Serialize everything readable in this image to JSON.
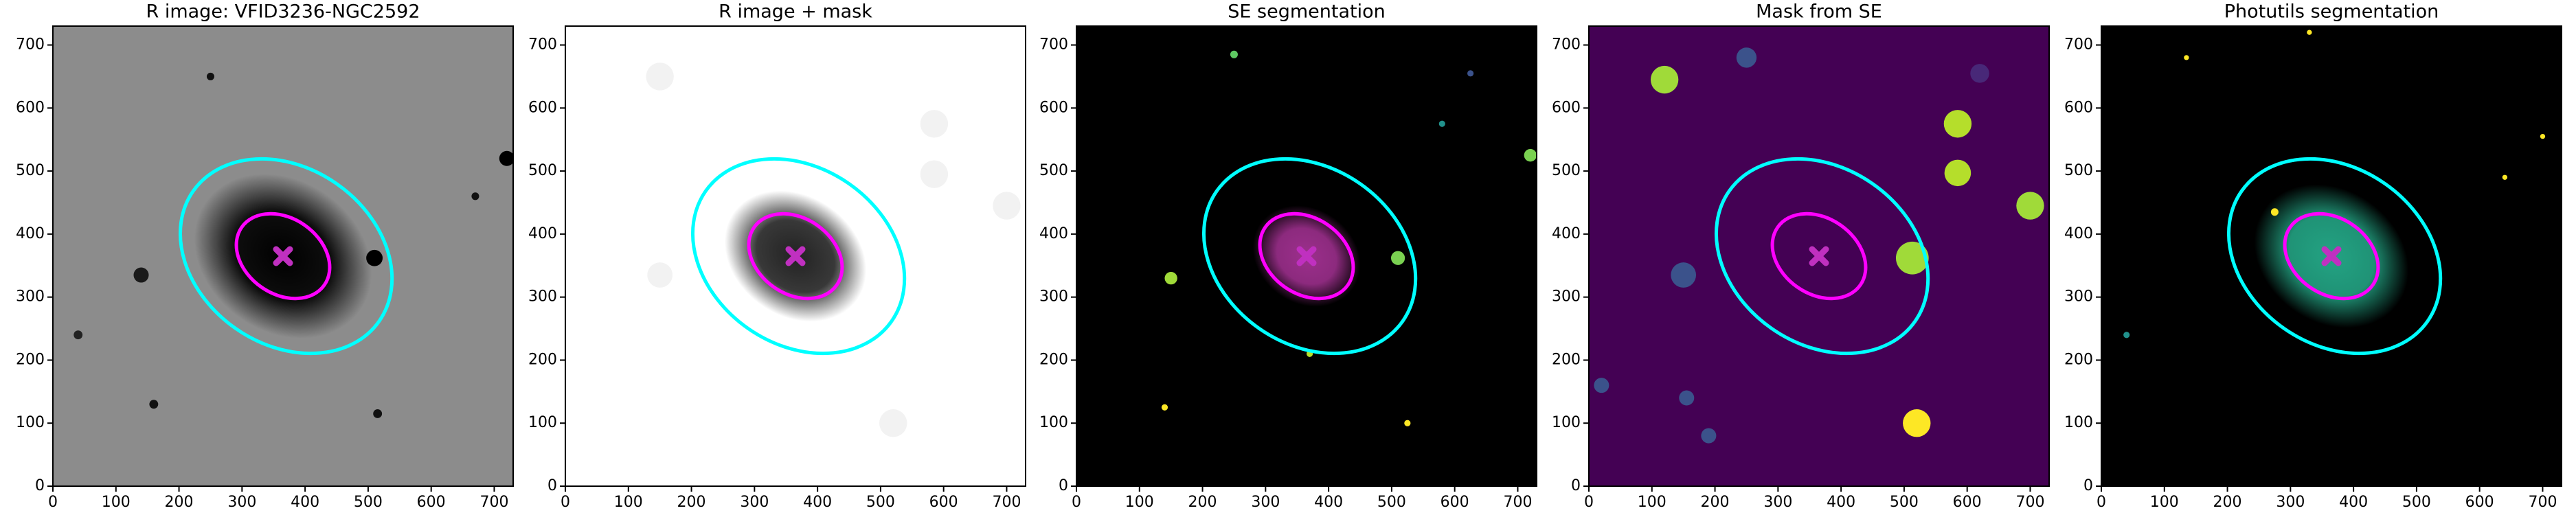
{
  "chart_data": [
    {
      "type": "image",
      "title": "R image: VFID3236-NGC2592",
      "background": "#8c8c8c",
      "xlim": [
        0,
        730
      ],
      "ylim": [
        0,
        730
      ],
      "xticks": [
        0,
        100,
        200,
        300,
        400,
        500,
        600,
        700
      ],
      "yticks": [
        0,
        100,
        200,
        300,
        400,
        500,
        600,
        700
      ],
      "galaxy": {
        "x": 365,
        "y": 365,
        "a": 150,
        "b": 120,
        "angle": -35,
        "color": "#000000"
      },
      "sources": [
        {
          "x": 720,
          "y": 520,
          "r": 12,
          "color": "#000000"
        },
        {
          "x": 510,
          "y": 362,
          "r": 13,
          "color": "#000000"
        },
        {
          "x": 140,
          "y": 335,
          "r": 12,
          "color": "#1a1a1a"
        },
        {
          "x": 250,
          "y": 650,
          "r": 6,
          "color": "#111111"
        },
        {
          "x": 160,
          "y": 130,
          "r": 7,
          "color": "#111111"
        },
        {
          "x": 515,
          "y": 115,
          "r": 7,
          "color": "#111111"
        },
        {
          "x": 40,
          "y": 240,
          "r": 7,
          "color": "#222222"
        },
        {
          "x": 670,
          "y": 460,
          "r": 6,
          "color": "#111111"
        }
      ],
      "ellipses": [
        {
          "cx": 370,
          "cy": 365,
          "a": 180,
          "b": 140,
          "angle": -35,
          "color": "#00ffff"
        },
        {
          "cx": 365,
          "cy": 365,
          "a": 80,
          "b": 60,
          "angle": -35,
          "color": "#ff00ff"
        }
      ],
      "marker": {
        "x": 365,
        "y": 365,
        "color": "#c030c0"
      }
    },
    {
      "type": "image",
      "title": "R image + mask",
      "background": "#ffffff",
      "xlim": [
        0,
        730
      ],
      "ylim": [
        0,
        730
      ],
      "xticks": [
        0,
        100,
        200,
        300,
        400,
        500,
        600,
        700
      ],
      "yticks": [
        0,
        100,
        200,
        300,
        400,
        500,
        600,
        700
      ],
      "galaxy": {
        "x": 365,
        "y": 365,
        "a": 120,
        "b": 95,
        "angle": -35,
        "color": "#222222"
      },
      "sources": [
        {
          "x": 150,
          "y": 650,
          "r": 22,
          "color": "#f2f2f2"
        },
        {
          "x": 585,
          "y": 575,
          "r": 22,
          "color": "#f2f2f2"
        },
        {
          "x": 585,
          "y": 495,
          "r": 22,
          "color": "#f2f2f2"
        },
        {
          "x": 700,
          "y": 445,
          "r": 22,
          "color": "#f2f2f2"
        },
        {
          "x": 520,
          "y": 100,
          "r": 22,
          "color": "#f2f2f2"
        },
        {
          "x": 150,
          "y": 335,
          "r": 20,
          "color": "#f2f2f2"
        }
      ],
      "ellipses": [
        {
          "cx": 370,
          "cy": 365,
          "a": 180,
          "b": 140,
          "angle": -35,
          "color": "#00ffff"
        },
        {
          "cx": 365,
          "cy": 365,
          "a": 80,
          "b": 60,
          "angle": -35,
          "color": "#ff00ff"
        }
      ],
      "marker": {
        "x": 365,
        "y": 365,
        "color": "#c030c0"
      }
    },
    {
      "type": "image",
      "title": "SE segmentation",
      "background": "#000000",
      "xlim": [
        0,
        730
      ],
      "ylim": [
        0,
        730
      ],
      "xticks": [
        0,
        100,
        200,
        300,
        400,
        500,
        600,
        700
      ],
      "yticks": [
        0,
        100,
        200,
        300,
        400,
        500,
        600,
        700
      ],
      "galaxy": {
        "x": 365,
        "y": 365,
        "a": 90,
        "b": 75,
        "angle": -35,
        "color": "#9c2f8c"
      },
      "sources": [
        {
          "x": 720,
          "y": 525,
          "r": 10,
          "color": "#7ad151"
        },
        {
          "x": 510,
          "y": 362,
          "r": 11,
          "color": "#7ad151"
        },
        {
          "x": 150,
          "y": 330,
          "r": 10,
          "color": "#a0da39"
        },
        {
          "x": 250,
          "y": 685,
          "r": 6,
          "color": "#5ec962"
        },
        {
          "x": 625,
          "y": 655,
          "r": 5,
          "color": "#3b528b"
        },
        {
          "x": 580,
          "y": 575,
          "r": 5,
          "color": "#21918c"
        },
        {
          "x": 525,
          "y": 100,
          "r": 5,
          "color": "#fde725"
        },
        {
          "x": 140,
          "y": 125,
          "r": 5,
          "color": "#fde725"
        },
        {
          "x": 370,
          "y": 210,
          "r": 5,
          "color": "#b5de2b"
        }
      ],
      "ellipses": [
        {
          "cx": 370,
          "cy": 365,
          "a": 180,
          "b": 140,
          "angle": -35,
          "color": "#00ffff"
        },
        {
          "cx": 365,
          "cy": 365,
          "a": 80,
          "b": 60,
          "angle": -35,
          "color": "#ff00ff"
        }
      ],
      "marker": {
        "x": 365,
        "y": 365,
        "color": "#c030c0"
      }
    },
    {
      "type": "image",
      "title": "Mask from SE",
      "background": "#440154",
      "xlim": [
        0,
        730
      ],
      "ylim": [
        0,
        730
      ],
      "xticks": [
        0,
        100,
        200,
        300,
        400,
        500,
        600,
        700
      ],
      "yticks": [
        0,
        100,
        200,
        300,
        400,
        500,
        600,
        700
      ],
      "sources": [
        {
          "x": 120,
          "y": 645,
          "r": 22,
          "color": "#a0da39"
        },
        {
          "x": 585,
          "y": 575,
          "r": 22,
          "color": "#b5de2b"
        },
        {
          "x": 585,
          "y": 497,
          "r": 21,
          "color": "#b5de2b"
        },
        {
          "x": 513,
          "y": 362,
          "r": 26,
          "color": "#a0da39"
        },
        {
          "x": 700,
          "y": 445,
          "r": 22,
          "color": "#a0da39"
        },
        {
          "x": 520,
          "y": 100,
          "r": 22,
          "color": "#fde725"
        },
        {
          "x": 250,
          "y": 680,
          "r": 16,
          "color": "#3b528b"
        },
        {
          "x": 150,
          "y": 335,
          "r": 20,
          "color": "#3b528b"
        },
        {
          "x": 20,
          "y": 160,
          "r": 12,
          "color": "#3b528b"
        },
        {
          "x": 155,
          "y": 140,
          "r": 12,
          "color": "#3b528b"
        },
        {
          "x": 190,
          "y": 80,
          "r": 12,
          "color": "#3b528b"
        },
        {
          "x": 620,
          "y": 655,
          "r": 15,
          "color": "#482878"
        }
      ],
      "ellipses": [
        {
          "cx": 370,
          "cy": 365,
          "a": 180,
          "b": 140,
          "angle": -35,
          "color": "#00ffff"
        },
        {
          "cx": 365,
          "cy": 365,
          "a": 80,
          "b": 60,
          "angle": -35,
          "color": "#ff00ff"
        }
      ],
      "marker": {
        "x": 365,
        "y": 365,
        "color": "#c030c0"
      }
    },
    {
      "type": "image",
      "title": "Photutils segmentation",
      "background": "#000000",
      "xlim": [
        0,
        730
      ],
      "ylim": [
        0,
        730
      ],
      "xticks": [
        0,
        100,
        200,
        300,
        400,
        500,
        600,
        700
      ],
      "yticks": [
        0,
        100,
        200,
        300,
        400,
        500,
        600,
        700
      ],
      "galaxy": {
        "x": 365,
        "y": 365,
        "a": 130,
        "b": 105,
        "angle": -35,
        "color": "#23a383"
      },
      "sources": [
        {
          "x": 640,
          "y": 490,
          "r": 4,
          "color": "#fde725"
        },
        {
          "x": 700,
          "y": 555,
          "r": 4,
          "color": "#fde725"
        },
        {
          "x": 330,
          "y": 720,
          "r": 4,
          "color": "#fde725"
        },
        {
          "x": 135,
          "y": 680,
          "r": 4,
          "color": "#fde725"
        },
        {
          "x": 40,
          "y": 240,
          "r": 5,
          "color": "#21918c"
        },
        {
          "x": 275,
          "y": 435,
          "r": 6,
          "color": "#fde725"
        }
      ],
      "ellipses": [
        {
          "cx": 370,
          "cy": 365,
          "a": 180,
          "b": 140,
          "angle": -35,
          "color": "#00ffff"
        },
        {
          "cx": 365,
          "cy": 365,
          "a": 80,
          "b": 60,
          "angle": -35,
          "color": "#ff00ff"
        }
      ],
      "marker": {
        "x": 365,
        "y": 365,
        "color": "#c030c0"
      }
    }
  ]
}
